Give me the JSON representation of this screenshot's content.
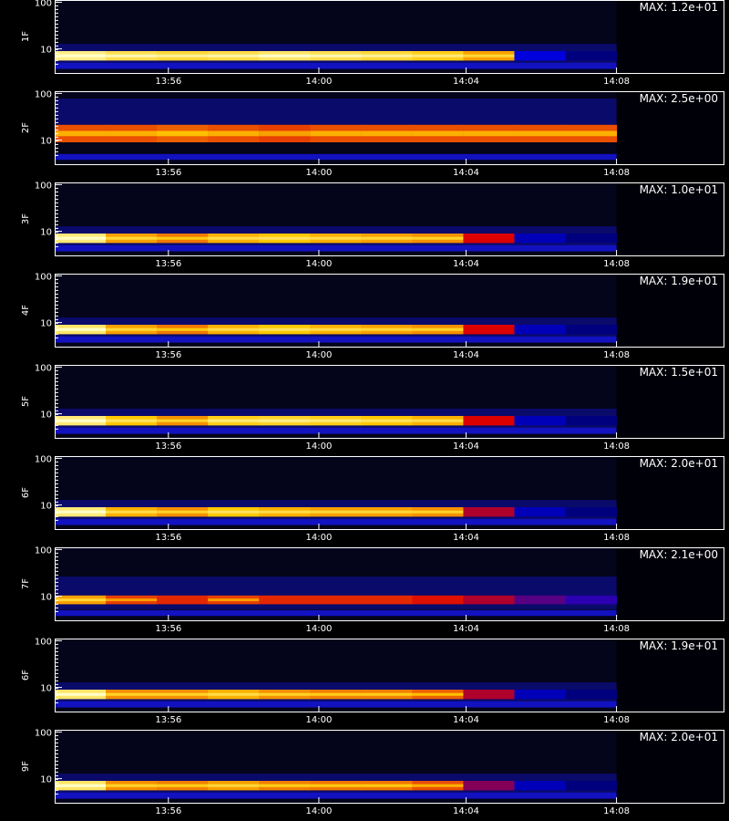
{
  "chart_data": [
    {
      "type": "heatmap",
      "ylabel": "1F",
      "max_label": "MAX: 1.2e+01",
      "yticks": [
        "100",
        "10"
      ],
      "xticks": [
        "13:56",
        "14:00",
        "14:04",
        "14:08"
      ],
      "intensity": [
        0.92,
        0.85,
        0.82,
        0.84,
        0.88,
        0.85,
        0.82,
        0.78,
        0.7,
        0.25,
        0.12,
        0.0
      ],
      "band": "low"
    },
    {
      "type": "heatmap",
      "ylabel": "2F",
      "max_label": "MAX: 2.5e+00",
      "yticks": [
        "100",
        "10"
      ],
      "xticks": [
        "13:56",
        "14:00",
        "14:04",
        "14:08"
      ],
      "intensity": [
        0.6,
        0.6,
        0.62,
        0.6,
        0.58,
        0.6,
        0.6,
        0.6,
        0.6,
        0.6,
        0.6,
        0.0
      ],
      "band": "mid"
    },
    {
      "type": "heatmap",
      "ylabel": "3F",
      "max_label": "MAX: 1.0e+01",
      "yticks": [
        "100",
        "10"
      ],
      "xticks": [
        "13:56",
        "14:00",
        "14:04",
        "14:08"
      ],
      "intensity": [
        0.9,
        0.7,
        0.65,
        0.72,
        0.75,
        0.72,
        0.7,
        0.68,
        0.5,
        0.2,
        0.12,
        0.0
      ],
      "band": "low"
    },
    {
      "type": "heatmap",
      "ylabel": "4F",
      "max_label": "MAX: 1.9e+01",
      "yticks": [
        "100",
        "10"
      ],
      "xticks": [
        "13:56",
        "14:00",
        "14:04",
        "14:08"
      ],
      "intensity": [
        0.88,
        0.7,
        0.65,
        0.72,
        0.75,
        0.72,
        0.7,
        0.68,
        0.5,
        0.2,
        0.12,
        0.0
      ],
      "band": "low"
    },
    {
      "type": "heatmap",
      "ylabel": "5F",
      "max_label": "MAX: 1.5e+01",
      "yticks": [
        "100",
        "10"
      ],
      "xticks": [
        "13:56",
        "14:00",
        "14:04",
        "14:08"
      ],
      "intensity": [
        0.9,
        0.75,
        0.68,
        0.78,
        0.8,
        0.78,
        0.75,
        0.72,
        0.5,
        0.2,
        0.12,
        0.0
      ],
      "band": "low"
    },
    {
      "type": "heatmap",
      "ylabel": "6F",
      "max_label": "MAX: 2.0e+01",
      "yticks": [
        "100",
        "10"
      ],
      "xticks": [
        "13:56",
        "14:00",
        "14:04",
        "14:08"
      ],
      "intensity": [
        0.9,
        0.72,
        0.68,
        0.75,
        0.72,
        0.7,
        0.7,
        0.68,
        0.45,
        0.2,
        0.12,
        0.0
      ],
      "band": "low"
    },
    {
      "type": "heatmap",
      "ylabel": "7F",
      "max_label": "MAX: 2.1e+00",
      "yticks": [
        "100",
        "10"
      ],
      "xticks": [
        "13:56",
        "14:00",
        "14:04",
        "14:08"
      ],
      "intensity": [
        0.7,
        0.58,
        0.55,
        0.58,
        0.55,
        0.55,
        0.55,
        0.52,
        0.45,
        0.35,
        0.3,
        0.0
      ],
      "band": "mid-low"
    },
    {
      "type": "heatmap",
      "ylabel": "6F",
      "max_label": "MAX: 1.9e+01",
      "yticks": [
        "100",
        "10"
      ],
      "xticks": [
        "13:56",
        "14:00",
        "14:04",
        "14:08"
      ],
      "intensity": [
        0.88,
        0.68,
        0.68,
        0.72,
        0.68,
        0.66,
        0.66,
        0.62,
        0.45,
        0.2,
        0.12,
        0.0
      ],
      "band": "low"
    },
    {
      "type": "heatmap",
      "ylabel": "9F",
      "max_label": "MAX: 2.0e+01",
      "yticks": [
        "100",
        "10"
      ],
      "xticks": [
        "13:56",
        "14:00",
        "14:04",
        "14:08"
      ],
      "intensity": [
        0.88,
        0.68,
        0.66,
        0.7,
        0.66,
        0.65,
        0.65,
        0.6,
        0.4,
        0.2,
        0.12,
        0.0
      ],
      "band": "low"
    }
  ],
  "colors": {
    "background": "#000000",
    "axis": "#ffffff"
  },
  "footer": {
    "xaxis_label": ""
  }
}
